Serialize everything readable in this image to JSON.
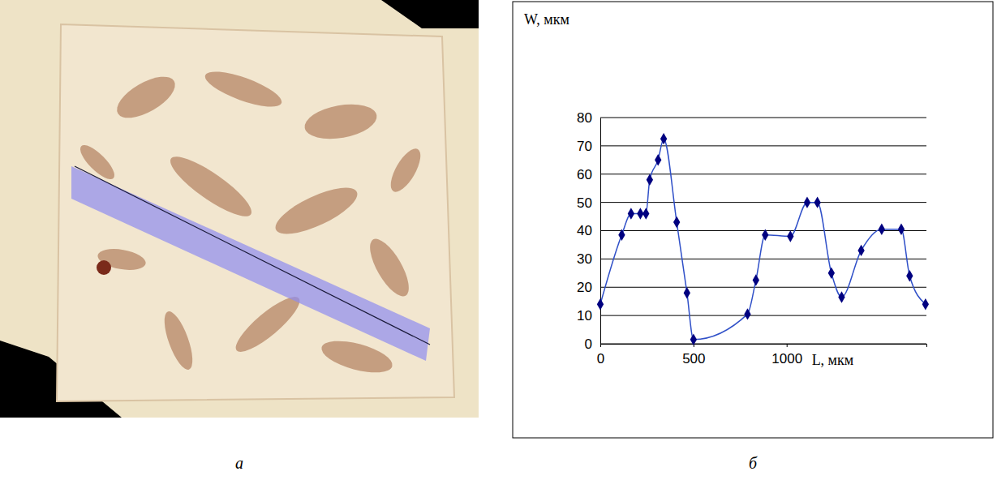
{
  "chart_data": [
    {
      "type": "image",
      "label": "а"
    },
    {
      "type": "line",
      "label": "б",
      "x_label": "L, мкм",
      "y_label": "W, мкм",
      "x": [
        0,
        115,
        165,
        215,
        245,
        265,
        310,
        340,
        410,
        465,
        500,
        790,
        835,
        885,
        1020,
        1110,
        1165,
        1240,
        1295,
        1400,
        1510,
        1615,
        1660,
        1745
      ],
      "series": [
        {
          "color": "#000080",
          "marker": "diamond",
          "line_style": "smooth",
          "values": [
            14,
            38.5,
            46,
            46,
            46,
            58,
            65,
            72.5,
            43,
            18,
            1.5,
            10.5,
            22.5,
            38.5,
            38,
            50,
            50,
            25,
            16.5,
            33,
            40.5,
            40.5,
            24,
            14
          ]
        }
      ],
      "xlim": [
        0,
        1750
      ],
      "xticks": [
        0,
        500,
        1000
      ],
      "ylim": [
        0,
        80
      ],
      "yticks": [
        0,
        10,
        20,
        30,
        40,
        50,
        60,
        70,
        80
      ],
      "grid": true
    }
  ]
}
